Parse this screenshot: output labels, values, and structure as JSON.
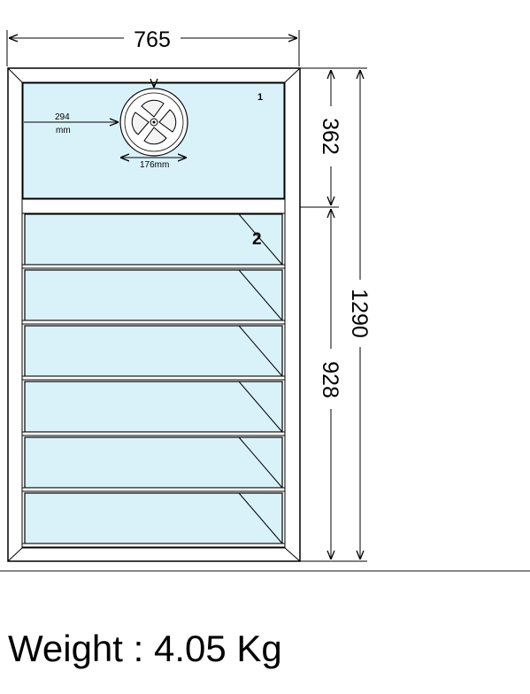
{
  "dimensions": {
    "overall_width": "765",
    "overall_height": "1290",
    "top_panel_height": "362",
    "bottom_panel_height": "928"
  },
  "panels": {
    "top_label": "1",
    "bottom_label": "2"
  },
  "fan": {
    "offset_value": "294",
    "offset_unit": "mm",
    "diameter_label": "176mm"
  },
  "louvre_blades": 6,
  "weight": {
    "label": "Weight :",
    "value": "4.05",
    "unit": "Kg"
  },
  "colors": {
    "glass": "#d9f2fa",
    "frame": "#ffffff",
    "line": "#000000",
    "panel_number": "#ff0000"
  }
}
